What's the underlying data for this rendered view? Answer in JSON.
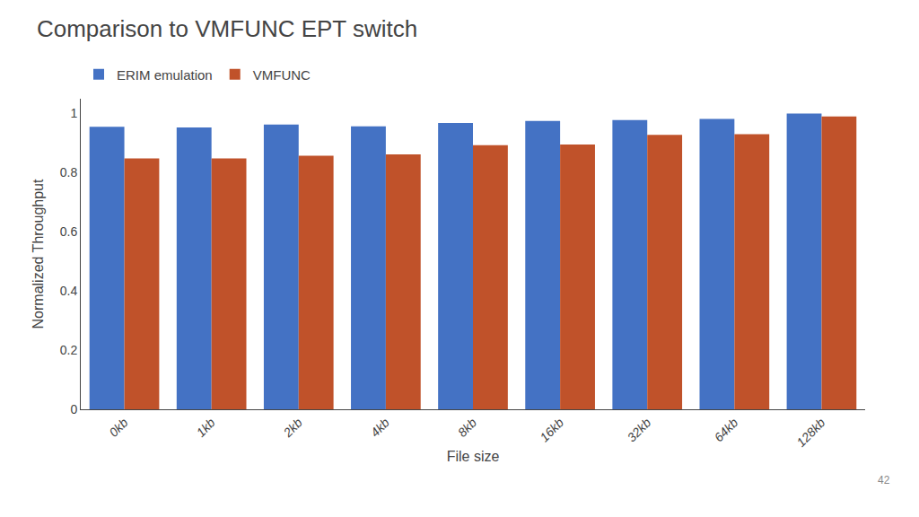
{
  "chart_data": {
    "type": "bar",
    "title": "Comparison to VMFUNC EPT switch",
    "xlabel": "File size",
    "ylabel": "Normalized Throughput",
    "categories": [
      "0kb",
      "1kb",
      "2kb",
      "4kb",
      "8kb",
      "16kb",
      "32kb",
      "64kb",
      "128kb"
    ],
    "series": [
      {
        "name": "ERIM emulation",
        "color": "#4472C4",
        "values": [
          0.955,
          0.953,
          0.963,
          0.957,
          0.968,
          0.975,
          0.978,
          0.982,
          1.0
        ]
      },
      {
        "name": "VMFUNC",
        "color": "#C0522A",
        "values": [
          0.848,
          0.848,
          0.857,
          0.862,
          0.893,
          0.895,
          0.928,
          0.93,
          0.99
        ]
      }
    ],
    "ylim": [
      0,
      1.05
    ],
    "yticks": [
      0,
      0.2,
      0.4,
      0.6,
      0.8,
      1
    ],
    "grid": false,
    "legend": "upper left",
    "annotations": [
      "42"
    ]
  }
}
